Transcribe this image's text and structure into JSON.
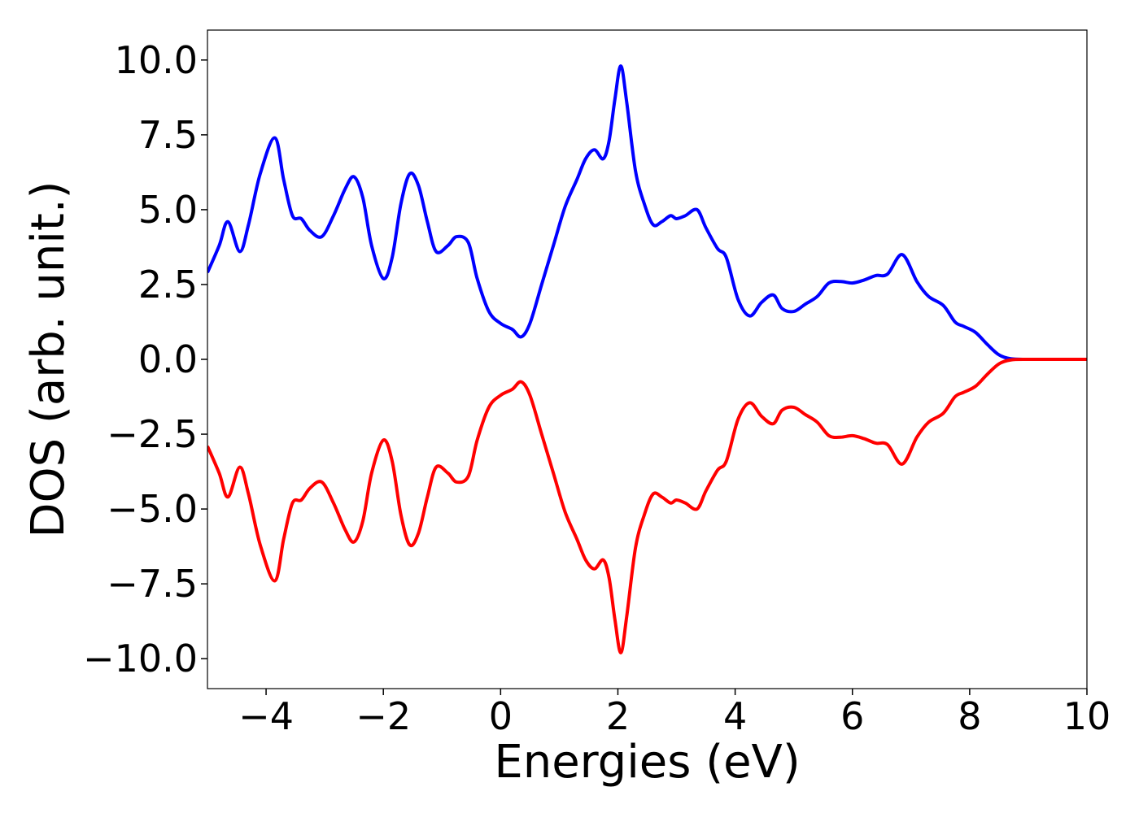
{
  "chart_data": {
    "type": "line",
    "title": "",
    "xlabel": "Energies (eV)",
    "ylabel": "DOS (arb. unit.)",
    "xlim": [
      -5,
      10
    ],
    "ylim": [
      -11,
      11
    ],
    "xticks": [
      -4,
      -2,
      0,
      2,
      4,
      6,
      8,
      10
    ],
    "xtick_labels": [
      "−4",
      "−2",
      "0",
      "2",
      "4",
      "6",
      "8",
      "10"
    ],
    "yticks": [
      10,
      7.5,
      5,
      2.5,
      0,
      -2.5,
      -5,
      -7.5,
      -10
    ],
    "ytick_labels": [
      "10.0",
      "7.5",
      "5.0",
      "2.5",
      "0.0",
      "−2.5",
      "−5.0",
      "−7.5",
      "−10.0"
    ],
    "grid": false,
    "legend": "none",
    "series": [
      {
        "color": "#0000ff",
        "x": [
          -5.0,
          -4.8,
          -4.65,
          -4.45,
          -4.3,
          -4.1,
          -3.85,
          -3.7,
          -3.55,
          -3.4,
          -3.25,
          -3.05,
          -2.85,
          -2.65,
          -2.5,
          -2.35,
          -2.2,
          -2.0,
          -1.85,
          -1.7,
          -1.55,
          -1.4,
          -1.25,
          -1.1,
          -0.9,
          -0.75,
          -0.55,
          -0.4,
          -0.2,
          0.0,
          0.2,
          0.35,
          0.5,
          0.7,
          0.9,
          1.1,
          1.3,
          1.45,
          1.6,
          1.75,
          1.85,
          1.95,
          2.05,
          2.15,
          2.3,
          2.45,
          2.6,
          2.75,
          2.9,
          3.0,
          3.15,
          3.35,
          3.5,
          3.7,
          3.85,
          4.05,
          4.25,
          4.45,
          4.65,
          4.8,
          5.0,
          5.2,
          5.4,
          5.6,
          5.8,
          6.0,
          6.2,
          6.4,
          6.6,
          6.85,
          7.1,
          7.3,
          7.55,
          7.75,
          7.9,
          8.1,
          8.3,
          8.5,
          8.7,
          9.0,
          9.5,
          10.0
        ],
        "values": [
          2.9,
          3.8,
          4.6,
          3.6,
          4.5,
          6.2,
          7.4,
          6.0,
          4.8,
          4.7,
          4.3,
          4.1,
          4.8,
          5.7,
          6.1,
          5.4,
          3.8,
          2.7,
          3.4,
          5.2,
          6.2,
          5.8,
          4.6,
          3.6,
          3.8,
          4.1,
          3.9,
          2.7,
          1.6,
          1.2,
          1.0,
          0.75,
          1.2,
          2.5,
          3.8,
          5.1,
          6.0,
          6.7,
          7.0,
          6.7,
          7.3,
          8.7,
          9.8,
          8.6,
          6.3,
          5.2,
          4.5,
          4.6,
          4.8,
          4.7,
          4.8,
          5.0,
          4.4,
          3.7,
          3.4,
          2.0,
          1.45,
          1.9,
          2.15,
          1.7,
          1.6,
          1.85,
          2.1,
          2.55,
          2.6,
          2.55,
          2.65,
          2.8,
          2.85,
          3.5,
          2.6,
          2.1,
          1.8,
          1.25,
          1.1,
          0.9,
          0.5,
          0.15,
          0.02,
          0.0,
          0.0,
          0.0
        ]
      },
      {
        "color": "#ff0000",
        "x": [
          -5.0,
          -4.8,
          -4.65,
          -4.45,
          -4.3,
          -4.1,
          -3.85,
          -3.7,
          -3.55,
          -3.4,
          -3.25,
          -3.05,
          -2.85,
          -2.65,
          -2.5,
          -2.35,
          -2.2,
          -2.0,
          -1.85,
          -1.7,
          -1.55,
          -1.4,
          -1.25,
          -1.1,
          -0.9,
          -0.75,
          -0.55,
          -0.4,
          -0.2,
          0.0,
          0.2,
          0.35,
          0.5,
          0.7,
          0.9,
          1.1,
          1.3,
          1.45,
          1.6,
          1.75,
          1.85,
          1.95,
          2.05,
          2.15,
          2.3,
          2.45,
          2.6,
          2.75,
          2.9,
          3.0,
          3.15,
          3.35,
          3.5,
          3.7,
          3.85,
          4.05,
          4.25,
          4.45,
          4.65,
          4.8,
          5.0,
          5.2,
          5.4,
          5.6,
          5.8,
          6.0,
          6.2,
          6.4,
          6.6,
          6.85,
          7.1,
          7.3,
          7.55,
          7.75,
          7.9,
          8.1,
          8.3,
          8.5,
          8.7,
          9.0,
          9.5,
          10.0
        ],
        "values": [
          -2.9,
          -3.8,
          -4.6,
          -3.6,
          -4.5,
          -6.2,
          -7.4,
          -6.0,
          -4.8,
          -4.7,
          -4.3,
          -4.1,
          -4.8,
          -5.7,
          -6.1,
          -5.4,
          -3.8,
          -2.7,
          -3.4,
          -5.2,
          -6.2,
          -5.8,
          -4.6,
          -3.6,
          -3.8,
          -4.1,
          -3.9,
          -2.7,
          -1.6,
          -1.2,
          -1.0,
          -0.75,
          -1.2,
          -2.5,
          -3.8,
          -5.1,
          -6.0,
          -6.7,
          -7.0,
          -6.7,
          -7.3,
          -8.7,
          -9.8,
          -8.6,
          -6.3,
          -5.2,
          -4.5,
          -4.6,
          -4.8,
          -4.7,
          -4.8,
          -5.0,
          -4.4,
          -3.7,
          -3.4,
          -2.0,
          -1.45,
          -1.9,
          -2.15,
          -1.7,
          -1.6,
          -1.85,
          -2.1,
          -2.55,
          -2.6,
          -2.55,
          -2.65,
          -2.8,
          -2.85,
          -3.5,
          -2.6,
          -2.1,
          -1.8,
          -1.25,
          -1.1,
          -0.9,
          -0.5,
          -0.15,
          -0.02,
          0.0,
          0.0,
          0.0
        ]
      }
    ]
  }
}
